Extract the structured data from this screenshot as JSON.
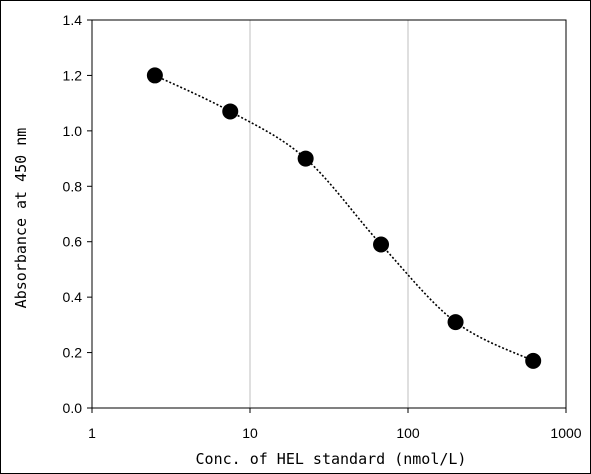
{
  "chart_data": {
    "type": "scatter",
    "title": "",
    "xlabel": "Conc. of HEL standard (nmol/L)",
    "ylabel": "Absorbance at 450 nm",
    "x_scale": "log",
    "xlim": [
      1,
      1000
    ],
    "ylim": [
      0,
      1.4
    ],
    "x_ticks": [
      "1",
      "10",
      "100",
      "1000"
    ],
    "y_ticks": [
      "0.0",
      "0.2",
      "0.4",
      "0.6",
      "0.8",
      "1.0",
      "1.2",
      "1.4"
    ],
    "grid": "vertical gridlines at each decade",
    "legend": "none",
    "trendline": "dotted smooth curve through points",
    "series": [
      {
        "x": [
          2.5,
          7.5,
          22.5,
          67.5,
          200,
          620
        ],
        "y": [
          1.2,
          1.07,
          0.9,
          0.59,
          0.31,
          0.17
        ]
      }
    ],
    "colors": {
      "marker": "#000000",
      "grid": "#bfbfbf",
      "axis": "#000000"
    }
  }
}
